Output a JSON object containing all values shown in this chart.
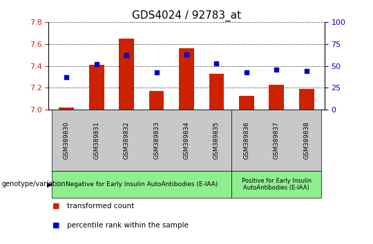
{
  "title": "GDS4024 / 92783_at",
  "samples": [
    "GSM389830",
    "GSM389831",
    "GSM389832",
    "GSM389833",
    "GSM389834",
    "GSM389835",
    "GSM389836",
    "GSM389837",
    "GSM389838"
  ],
  "transformed_count": [
    7.02,
    7.41,
    7.65,
    7.17,
    7.56,
    7.33,
    7.13,
    7.23,
    7.19
  ],
  "percentile_rank": [
    37,
    52,
    62,
    43,
    63,
    53,
    43,
    46,
    44
  ],
  "ylim_left": [
    7.0,
    7.8
  ],
  "ylim_right": [
    0,
    100
  ],
  "yticks_left": [
    7.0,
    7.2,
    7.4,
    7.6,
    7.8
  ],
  "yticks_right": [
    0,
    25,
    50,
    75,
    100
  ],
  "bar_color": "#cc2200",
  "dot_color": "#0000cc",
  "bar_width": 0.5,
  "group1_label": "Negative for Early Insulin AutoAntibodies (E-IAA)",
  "group2_label": "Positive for Early Insulin\nAutoAntibodies (E-IAA)",
  "group1_indices": [
    0,
    1,
    2,
    3,
    4,
    5
  ],
  "group2_indices": [
    6,
    7,
    8
  ],
  "group_bg_color": "#90ee90",
  "tick_bg_color": "#c8c8c8",
  "legend_red_label": "transformed count",
  "legend_blue_label": "percentile rank within the sample",
  "title_fontsize": 11,
  "axis_label_color_left": "#cc2200",
  "axis_label_color_right": "#0000cc",
  "genotype_label": "genotype/variation"
}
